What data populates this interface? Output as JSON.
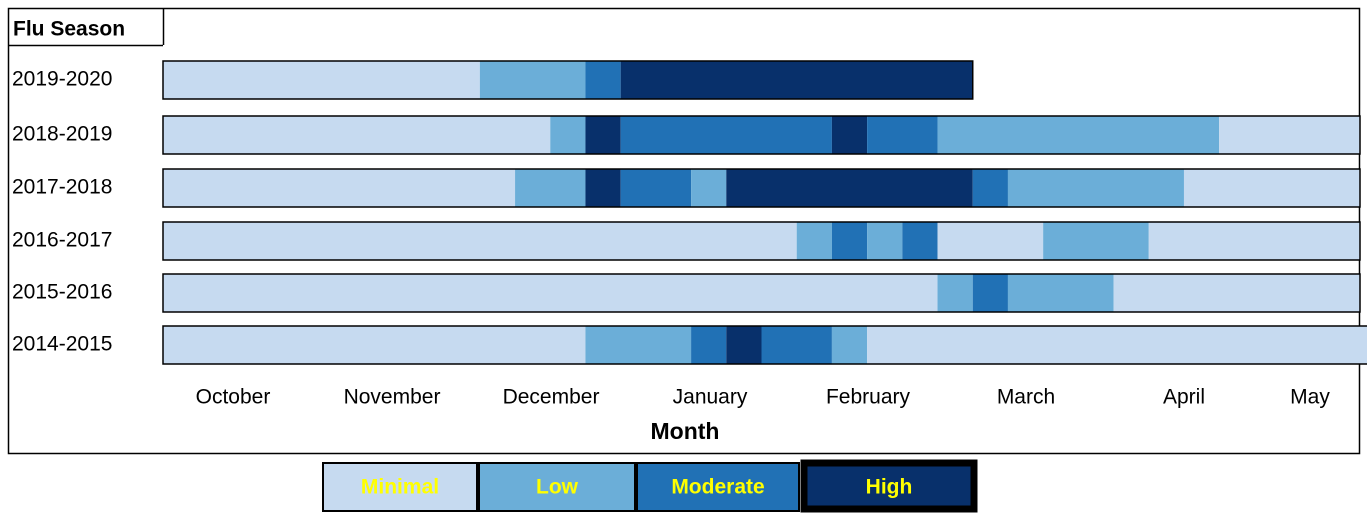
{
  "chart_data": {
    "type": "timeline",
    "title": "Flu Season",
    "x_label": "Month",
    "months": [
      "October",
      "November",
      "December",
      "January",
      "February",
      "March",
      "April",
      "May"
    ],
    "xlim": [
      0,
      34
    ],
    "levels": [
      {
        "name": "Minimal",
        "color": "#c6daf0"
      },
      {
        "name": "Low",
        "color": "#6baed8"
      },
      {
        "name": "Moderate",
        "color": "#2171b5"
      },
      {
        "name": "High",
        "color": "#08306b"
      }
    ],
    "rows": [
      {
        "label": "2019-2020",
        "segments": [
          {
            "level": "Minimal",
            "weeks": 9
          },
          {
            "level": "Low",
            "weeks": 3
          },
          {
            "level": "Moderate",
            "weeks": 1
          },
          {
            "level": "High",
            "weeks": 10
          }
        ]
      },
      {
        "label": "2018-2019",
        "segments": [
          {
            "level": "Minimal",
            "weeks": 11
          },
          {
            "level": "Low",
            "weeks": 1
          },
          {
            "level": "High",
            "weeks": 1
          },
          {
            "level": "Moderate",
            "weeks": 6
          },
          {
            "level": "High",
            "weeks": 1
          },
          {
            "level": "Moderate",
            "weeks": 2
          },
          {
            "level": "Low",
            "weeks": 8
          },
          {
            "level": "Minimal",
            "weeks": 4
          }
        ]
      },
      {
        "label": "2017-2018",
        "segments": [
          {
            "level": "Minimal",
            "weeks": 10
          },
          {
            "level": "Low",
            "weeks": 2
          },
          {
            "level": "High",
            "weeks": 1
          },
          {
            "level": "Moderate",
            "weeks": 2
          },
          {
            "level": "Low",
            "weeks": 1
          },
          {
            "level": "High",
            "weeks": 7
          },
          {
            "level": "Moderate",
            "weeks": 1
          },
          {
            "level": "Low",
            "weeks": 5
          },
          {
            "level": "Minimal",
            "weeks": 5
          }
        ]
      },
      {
        "label": "2016-2017",
        "segments": [
          {
            "level": "Minimal",
            "weeks": 18
          },
          {
            "level": "Low",
            "weeks": 1
          },
          {
            "level": "Moderate",
            "weeks": 1
          },
          {
            "level": "Low",
            "weeks": 1
          },
          {
            "level": "Moderate",
            "weeks": 1
          },
          {
            "level": "Minimal",
            "weeks": 3
          },
          {
            "level": "Low",
            "weeks": 3
          },
          {
            "level": "Minimal",
            "weeks": 6
          }
        ]
      },
      {
        "label": "2015-2016",
        "segments": [
          {
            "level": "Minimal",
            "weeks": 22
          },
          {
            "level": "Low",
            "weeks": 1
          },
          {
            "level": "Moderate",
            "weeks": 1
          },
          {
            "level": "Low",
            "weeks": 3
          },
          {
            "level": "Minimal",
            "weeks": 7
          }
        ]
      },
      {
        "label": "2014-2015",
        "segments": [
          {
            "level": "Minimal",
            "weeks": 12
          },
          {
            "level": "Low",
            "weeks": 3
          },
          {
            "level": "Moderate",
            "weeks": 1
          },
          {
            "level": "High",
            "weeks": 1
          },
          {
            "level": "Moderate",
            "weeks": 2
          },
          {
            "level": "Low",
            "weeks": 1
          },
          {
            "level": "Minimal",
            "weeks": 15
          }
        ]
      }
    ],
    "legend_text_color": "#ffff00"
  }
}
